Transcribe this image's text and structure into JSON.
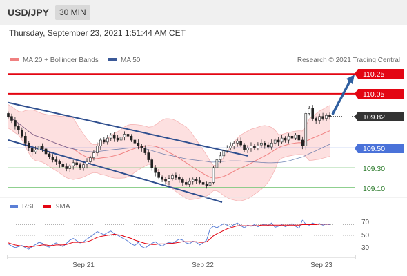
{
  "header": {
    "pair": "USD/JPY",
    "timeframe": "30 MIN",
    "datetime": "Thursday, September 23, 2021 1:51:44 AM CET"
  },
  "legend": {
    "ma20": "MA 20 + Bollinger Bands",
    "ma50": "MA 50",
    "credit": "Research © 2021 Trading Central",
    "rsi": "RSI",
    "rsi_ma": "9MA"
  },
  "colors": {
    "resistance": "#e30613",
    "support": "#4a72d9",
    "target": "#2a7a2a",
    "ma20": "#f08080",
    "ma50": "#3b5998",
    "band_fill": "#fde0e0",
    "channel": "#2f4f8f",
    "arrow": "#2f5fa0",
    "last_price_bg": "#333333",
    "rsi_line": "#5b7fd6",
    "rsi_ma_line": "#e30613"
  },
  "chart_data": {
    "type": "candlestick",
    "instrument": "USD/JPY",
    "timeframe": "30 MIN",
    "x_ticks": [
      "Sep 21",
      "Sep 22",
      "Sep 23"
    ],
    "price_range": [
      109.02,
      110.35
    ],
    "levels": {
      "resistance": [
        "110.25",
        "110.05"
      ],
      "last_price": "109.82",
      "support": "109.50",
      "targets": [
        "109.30",
        "109.10"
      ]
    },
    "closes": [
      109.82,
      109.78,
      109.72,
      109.68,
      109.62,
      109.55,
      109.5,
      109.46,
      109.48,
      109.52,
      109.49,
      109.44,
      109.41,
      109.38,
      109.36,
      109.34,
      109.31,
      109.29,
      109.32,
      109.35,
      109.33,
      109.3,
      109.33,
      109.36,
      109.4,
      109.45,
      109.52,
      109.58,
      109.56,
      109.6,
      109.63,
      109.6,
      109.58,
      109.61,
      109.64,
      109.62,
      109.58,
      109.55,
      109.52,
      109.5,
      109.45,
      109.38,
      109.3,
      109.25,
      109.2,
      109.18,
      109.16,
      109.19,
      109.22,
      109.2,
      109.18,
      109.15,
      109.13,
      109.16,
      109.18,
      109.17,
      109.15,
      109.13,
      109.12,
      109.15,
      109.3,
      109.38,
      109.42,
      109.47,
      109.5,
      109.52,
      109.55,
      109.57,
      109.53,
      109.48,
      109.5,
      109.52,
      109.5,
      109.53,
      109.55,
      109.53,
      109.51,
      109.55,
      109.58,
      109.56,
      109.6,
      109.58,
      109.62,
      109.6,
      109.63,
      109.58,
      109.52,
      109.85,
      109.9,
      109.8,
      109.78,
      109.82,
      109.8,
      109.83,
      109.82
    ],
    "rsi": {
      "levels": [
        70,
        50,
        30
      ],
      "values": [
        34,
        30,
        27,
        29,
        31,
        27,
        24,
        29,
        33,
        37,
        35,
        30,
        28,
        33,
        36,
        32,
        29,
        35,
        41,
        44,
        40,
        36,
        38,
        43,
        47,
        52,
        57,
        54,
        51,
        55,
        58,
        53,
        50,
        46,
        43,
        39,
        34,
        31,
        37,
        29,
        26,
        31,
        35,
        38,
        33,
        30,
        34,
        37,
        35,
        39,
        43,
        41,
        36,
        34,
        39,
        37,
        32,
        36,
        41,
        62,
        67,
        64,
        68,
        72,
        69,
        66,
        70,
        73,
        68,
        64,
        69,
        67,
        70,
        66,
        69,
        71,
        68,
        73,
        65,
        67,
        70,
        66,
        69,
        72,
        67,
        63,
        78,
        71,
        69,
        73,
        70,
        72,
        69,
        71,
        70
      ],
      "ma9": [
        36,
        34,
        32,
        31,
        30,
        29,
        28,
        29,
        30,
        31,
        32,
        32,
        31,
        31,
        32,
        32,
        32,
        33,
        35,
        37,
        37,
        37,
        37,
        38,
        40,
        43,
        46,
        48,
        49,
        50,
        51,
        52,
        51,
        50,
        48,
        46,
        44,
        41,
        39,
        37,
        35,
        34,
        33,
        33,
        34,
        34,
        34,
        35,
        35,
        36,
        37,
        38,
        38,
        38,
        38,
        38,
        37,
        37,
        38,
        43,
        49,
        53,
        56,
        59,
        62,
        64,
        66,
        68,
        68,
        68,
        68,
        68,
        68,
        68,
        69,
        69,
        69,
        69,
        69,
        69,
        69,
        69,
        69,
        69,
        69,
        69,
        70,
        70,
        70,
        70,
        70,
        71,
        71,
        71,
        71
      ]
    }
  }
}
